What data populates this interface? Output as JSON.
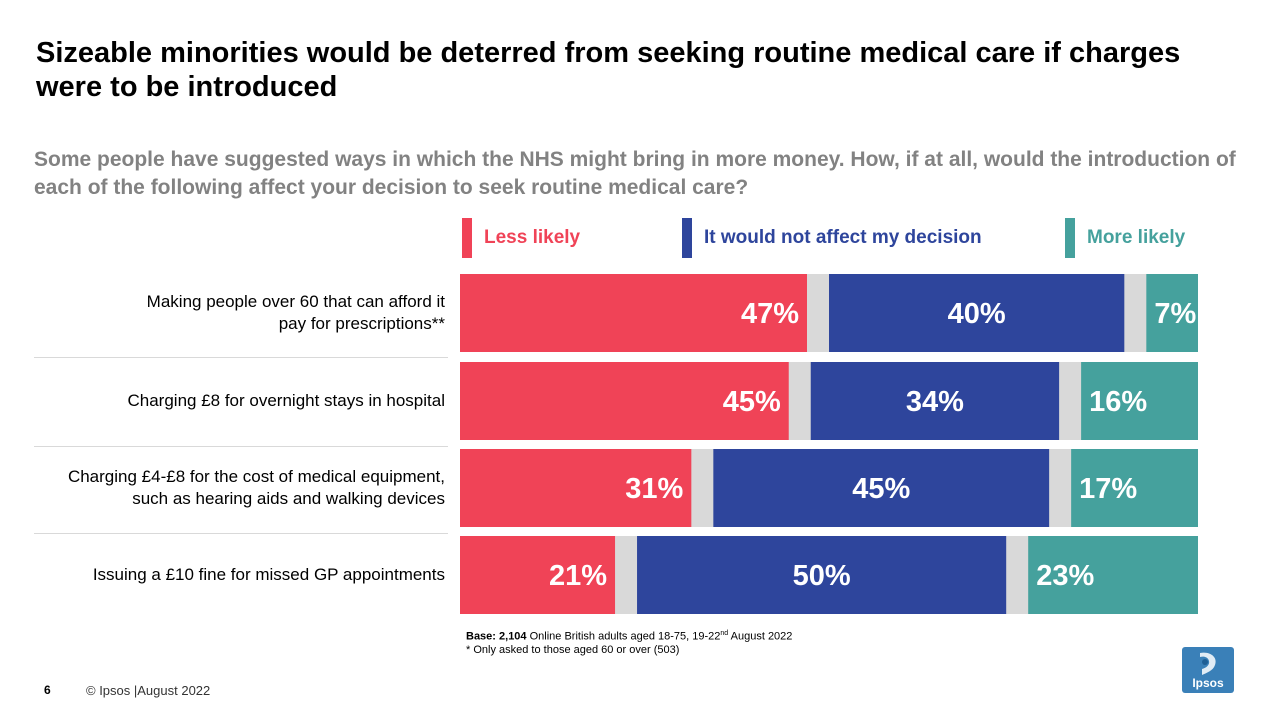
{
  "title": "Sizeable minorities would be deterred from seeking routine medical care if charges were to be introduced",
  "subtitle": "Some people have suggested ways in which the NHS might bring in more money. How, if at all, would the introduction of each of the following affect your decision to seek routine medical care?",
  "colors": {
    "less_likely": "#f04357",
    "not_affect": "#2e459c",
    "more_likely": "#45a19d",
    "gap": "#d9d9d9"
  },
  "chart_data": {
    "type": "bar",
    "orientation": "horizontal",
    "stacked": true,
    "categories": [
      "Making people over 60 that can afford it pay for prescriptions**",
      "Charging £8 for overnight stays in hospital",
      "Charging £4-£8 for the cost of medical equipment, such as hearing aids and walking devices",
      "Issuing a £10 fine for missed GP appointments"
    ],
    "category_lines": [
      [
        "Making people over 60 that can afford it",
        "pay for prescriptions**"
      ],
      [
        "Charging £8 for overnight stays in hospital"
      ],
      [
        "Charging £4-£8 for the cost of medical equipment,",
        "such as hearing aids and walking devices"
      ],
      [
        "Issuing a £10 fine for missed GP appointments"
      ]
    ],
    "series": [
      {
        "name": "Less likely",
        "values": [
          47,
          45,
          31,
          21
        ],
        "labels": [
          "47%",
          "45%",
          "31%",
          "21%"
        ]
      },
      {
        "name": "It would not affect my decision",
        "values": [
          40,
          34,
          45,
          50
        ],
        "labels": [
          "40%",
          "34%",
          "45%",
          "50%"
        ]
      },
      {
        "name": "More likely",
        "values": [
          7,
          16,
          17,
          23
        ],
        "labels": [
          "7%",
          "16%",
          "17%",
          "23%"
        ]
      }
    ],
    "legend_position": "top",
    "unit": "%"
  },
  "legend": {
    "less_likely": "Less likely",
    "not_affect": "It would not affect my decision",
    "more_likely": "More likely"
  },
  "footnote": {
    "base_label": "Base: 2,104",
    "base_text_a": " Online British adults aged 18-75, 19-22",
    "base_sup": "nd",
    "base_text_b": " August 2022",
    "note": "* Only asked to those aged 60 or over (503)"
  },
  "footer": {
    "page_number": "6",
    "copyright": "© Ipsos |August 2022",
    "logo_text": "Ipsos"
  }
}
